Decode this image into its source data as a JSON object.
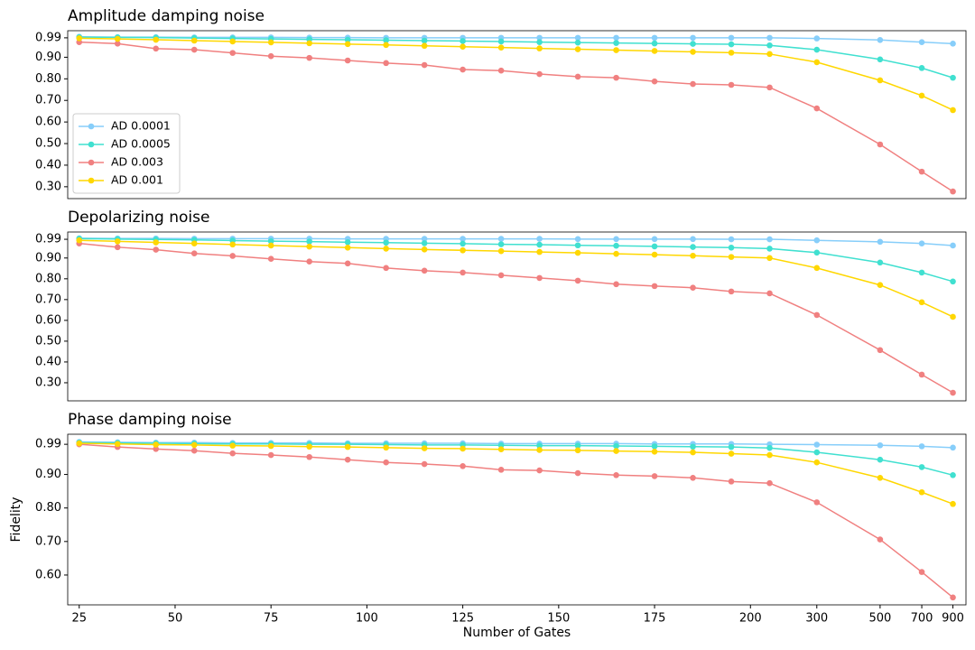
{
  "chart_data": [
    {
      "type": "line",
      "title": "Amplitude damping noise",
      "legend": "lower left",
      "x": [
        25,
        35,
        45,
        55,
        65,
        75,
        85,
        95,
        105,
        115,
        125,
        135,
        145,
        155,
        165,
        175,
        185,
        195,
        205,
        300,
        500,
        700,
        900
      ],
      "xlim": [
        22,
        1000
      ],
      "ylim": [
        0.245,
        1.023
      ],
      "yticks": [
        0.99,
        {
          "value": 0.9,
          "label": "0.90"
        },
        {
          "value": 0.8,
          "label": "0.80"
        },
        {
          "value": 0.7,
          "label": "0.70"
        },
        {
          "value": 0.6,
          "label": "0.60"
        },
        {
          "value": 0.5,
          "label": "0.50"
        },
        {
          "value": 0.4,
          "label": "0.40"
        },
        {
          "value": 0.3,
          "label": "0.30"
        }
      ],
      "series": [
        {
          "name": "AD 0.0001",
          "color": "#87cefa",
          "values": [
            0.995,
            0.993,
            0.993,
            0.992,
            0.992,
            0.992,
            0.991,
            0.991,
            0.99,
            0.99,
            0.99,
            0.99,
            0.99,
            0.99,
            0.99,
            0.99,
            0.99,
            0.99,
            0.99,
            0.987,
            0.98,
            0.97,
            0.963
          ]
        },
        {
          "name": "AD 0.0005",
          "color": "#40e0d0",
          "values": [
            0.993,
            0.992,
            0.991,
            0.989,
            0.987,
            0.985,
            0.983,
            0.981,
            0.979,
            0.977,
            0.975,
            0.973,
            0.97,
            0.968,
            0.966,
            0.964,
            0.962,
            0.96,
            0.955,
            0.935,
            0.89,
            0.85,
            0.805
          ]
        },
        {
          "name": "AD 0.003",
          "color": "#f08080",
          "values": [
            0.97,
            0.963,
            0.94,
            0.935,
            0.92,
            0.905,
            0.897,
            0.885,
            0.873,
            0.864,
            0.843,
            0.838,
            0.822,
            0.81,
            0.805,
            0.788,
            0.776,
            0.772,
            0.76,
            0.663,
            0.496,
            0.37,
            0.278
          ]
        },
        {
          "name": "AD 0.001",
          "color": "#ffd700",
          "values": [
            0.988,
            0.985,
            0.981,
            0.977,
            0.973,
            0.969,
            0.965,
            0.961,
            0.957,
            0.953,
            0.949,
            0.945,
            0.941,
            0.937,
            0.933,
            0.929,
            0.925,
            0.921,
            0.915,
            0.877,
            0.793,
            0.722,
            0.655
          ]
        }
      ]
    },
    {
      "type": "line",
      "title": "Depolarizing noise",
      "x": [
        25,
        35,
        45,
        55,
        65,
        75,
        85,
        95,
        105,
        115,
        125,
        135,
        145,
        155,
        165,
        175,
        185,
        195,
        205,
        300,
        500,
        700,
        900
      ],
      "xlim": [
        22,
        1000
      ],
      "ylim": [
        0.213,
        1.025
      ],
      "yticks": [
        0.99,
        {
          "value": 0.9,
          "label": "0.90"
        },
        {
          "value": 0.8,
          "label": "0.80"
        },
        {
          "value": 0.7,
          "label": "0.70"
        },
        {
          "value": 0.6,
          "label": "0.60"
        },
        {
          "value": 0.5,
          "label": "0.50"
        },
        {
          "value": 0.4,
          "label": "0.40"
        },
        {
          "value": 0.3,
          "label": "0.30"
        }
      ],
      "series": [
        {
          "color": "#87cefa",
          "values": [
            0.995,
            0.994,
            0.994,
            0.993,
            0.993,
            0.993,
            0.993,
            0.992,
            0.992,
            0.992,
            0.992,
            0.992,
            0.992,
            0.991,
            0.991,
            0.991,
            0.991,
            0.99,
            0.99,
            0.985,
            0.978,
            0.97,
            0.96
          ]
        },
        {
          "color": "#40e0d0",
          "values": [
            0.993,
            0.991,
            0.989,
            0.987,
            0.984,
            0.981,
            0.979,
            0.976,
            0.974,
            0.971,
            0.969,
            0.966,
            0.964,
            0.961,
            0.959,
            0.956,
            0.953,
            0.95,
            0.945,
            0.926,
            0.878,
            0.83,
            0.787
          ]
        },
        {
          "color": "#f08080",
          "values": [
            0.97,
            0.952,
            0.94,
            0.922,
            0.91,
            0.896,
            0.883,
            0.874,
            0.852,
            0.839,
            0.83,
            0.817,
            0.804,
            0.791,
            0.774,
            0.765,
            0.757,
            0.739,
            0.73,
            0.626,
            0.457,
            0.339,
            0.252
          ]
        },
        {
          "color": "#ffd700",
          "values": [
            0.985,
            0.98,
            0.975,
            0.97,
            0.965,
            0.96,
            0.955,
            0.95,
            0.945,
            0.941,
            0.937,
            0.933,
            0.929,
            0.925,
            0.92,
            0.916,
            0.911,
            0.905,
            0.9,
            0.852,
            0.77,
            0.687,
            0.617
          ]
        }
      ]
    },
    {
      "type": "line",
      "title": "Phase damping noise",
      "x_label": "Number of Gates",
      "y_label": "Fidelity",
      "x": [
        25,
        35,
        45,
        55,
        65,
        75,
        85,
        95,
        105,
        115,
        125,
        135,
        145,
        155,
        165,
        175,
        185,
        195,
        205,
        300,
        500,
        700,
        900
      ],
      "xlim": [
        22,
        1000
      ],
      "xticks": [
        25,
        50,
        75,
        100,
        125,
        150,
        175,
        200,
        300,
        500,
        700,
        900
      ],
      "ylim": [
        0.511,
        1.02
      ],
      "yticks": [
        0.99,
        {
          "value": 0.9,
          "label": "0.90"
        },
        {
          "value": 0.8,
          "label": "0.80"
        },
        {
          "value": 0.7,
          "label": "0.70"
        },
        {
          "value": 0.6,
          "label": "0.60"
        }
      ],
      "series": [
        {
          "color": "#87cefa",
          "values": [
            0.997,
            0.996,
            0.995,
            0.995,
            0.994,
            0.994,
            0.994,
            0.993,
            0.993,
            0.993,
            0.993,
            0.992,
            0.992,
            0.992,
            0.992,
            0.991,
            0.991,
            0.991,
            0.99,
            0.989,
            0.987,
            0.984,
            0.98
          ]
        },
        {
          "color": "#40e0d0",
          "values": [
            0.995,
            0.994,
            0.993,
            0.992,
            0.991,
            0.991,
            0.99,
            0.99,
            0.989,
            0.988,
            0.988,
            0.987,
            0.986,
            0.986,
            0.985,
            0.984,
            0.983,
            0.982,
            0.979,
            0.966,
            0.944,
            0.922,
            0.898
          ]
        },
        {
          "color": "#f08080",
          "values": [
            0.99,
            0.982,
            0.976,
            0.971,
            0.963,
            0.958,
            0.952,
            0.944,
            0.936,
            0.931,
            0.925,
            0.914,
            0.912,
            0.904,
            0.898,
            0.895,
            0.89,
            0.879,
            0.874,
            0.817,
            0.706,
            0.609,
            0.533
          ]
        },
        {
          "color": "#ffd700",
          "values": [
            0.993,
            0.991,
            0.989,
            0.988,
            0.986,
            0.985,
            0.983,
            0.982,
            0.98,
            0.978,
            0.977,
            0.975,
            0.973,
            0.972,
            0.97,
            0.968,
            0.966,
            0.962,
            0.958,
            0.936,
            0.89,
            0.847,
            0.812
          ]
        }
      ]
    }
  ]
}
